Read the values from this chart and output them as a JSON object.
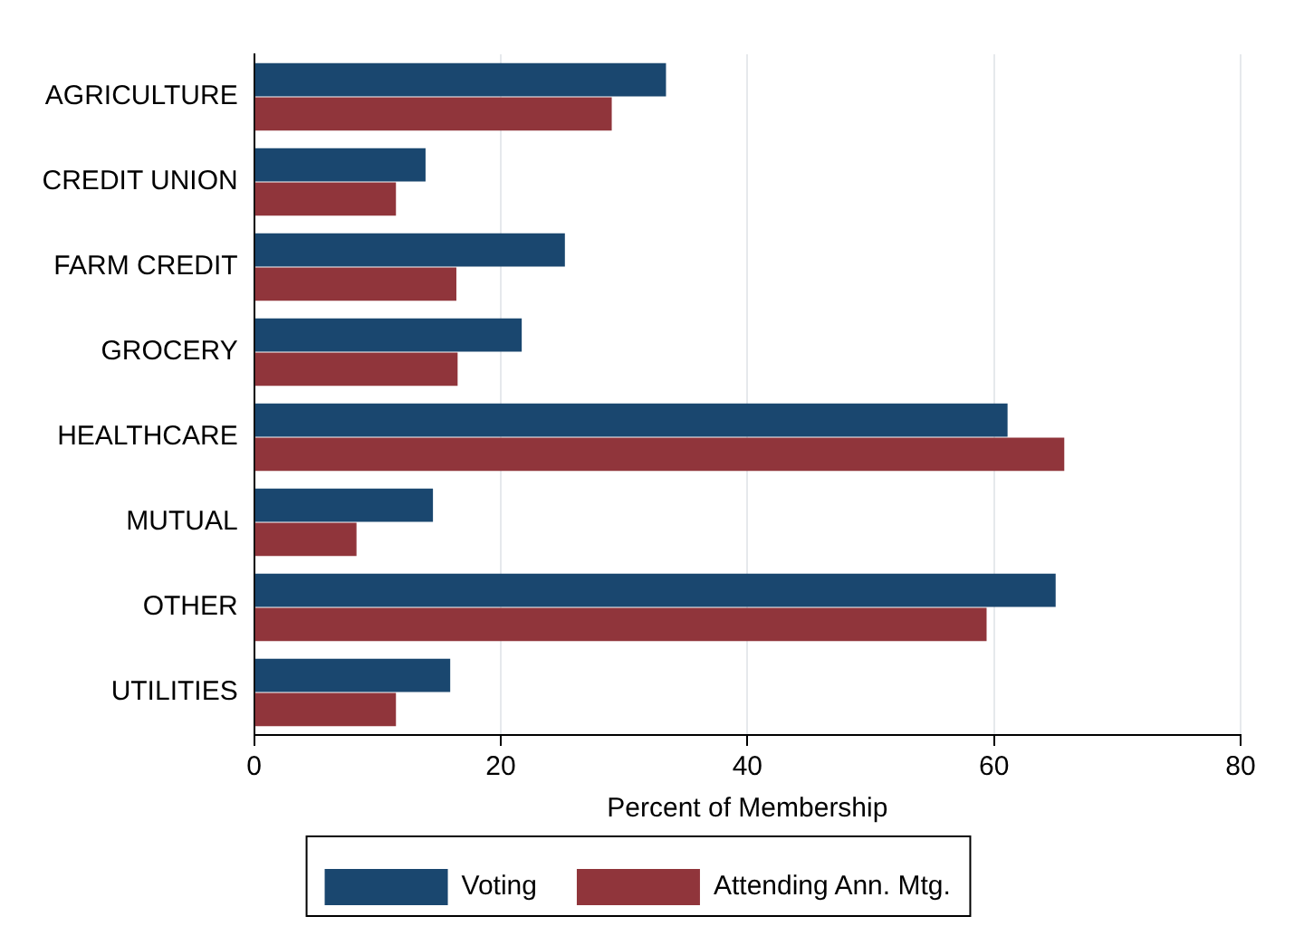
{
  "chart_data": {
    "type": "bar",
    "orientation": "horizontal",
    "xlabel": "Percent of Membership",
    "categories": [
      "AGRICULTURE",
      "CREDIT UNION",
      "FARM CREDIT",
      "GROCERY",
      "HEALTHCARE",
      "MUTUAL",
      "OTHER",
      "UTILITIES"
    ],
    "series": [
      {
        "name": "Voting",
        "color": "#1a476f",
        "values": [
          33.4,
          13.9,
          25.2,
          21.7,
          61.1,
          14.5,
          65.0,
          15.9
        ]
      },
      {
        "name": "Attending Ann. Mtg.",
        "color": "#90353b",
        "values": [
          29.0,
          11.5,
          16.4,
          16.5,
          65.7,
          8.3,
          59.4,
          11.5
        ]
      }
    ],
    "xlim": [
      0,
      80
    ],
    "xticks": [
      0,
      20,
      40,
      60,
      80
    ],
    "grid": "x",
    "legend": "bottom"
  }
}
